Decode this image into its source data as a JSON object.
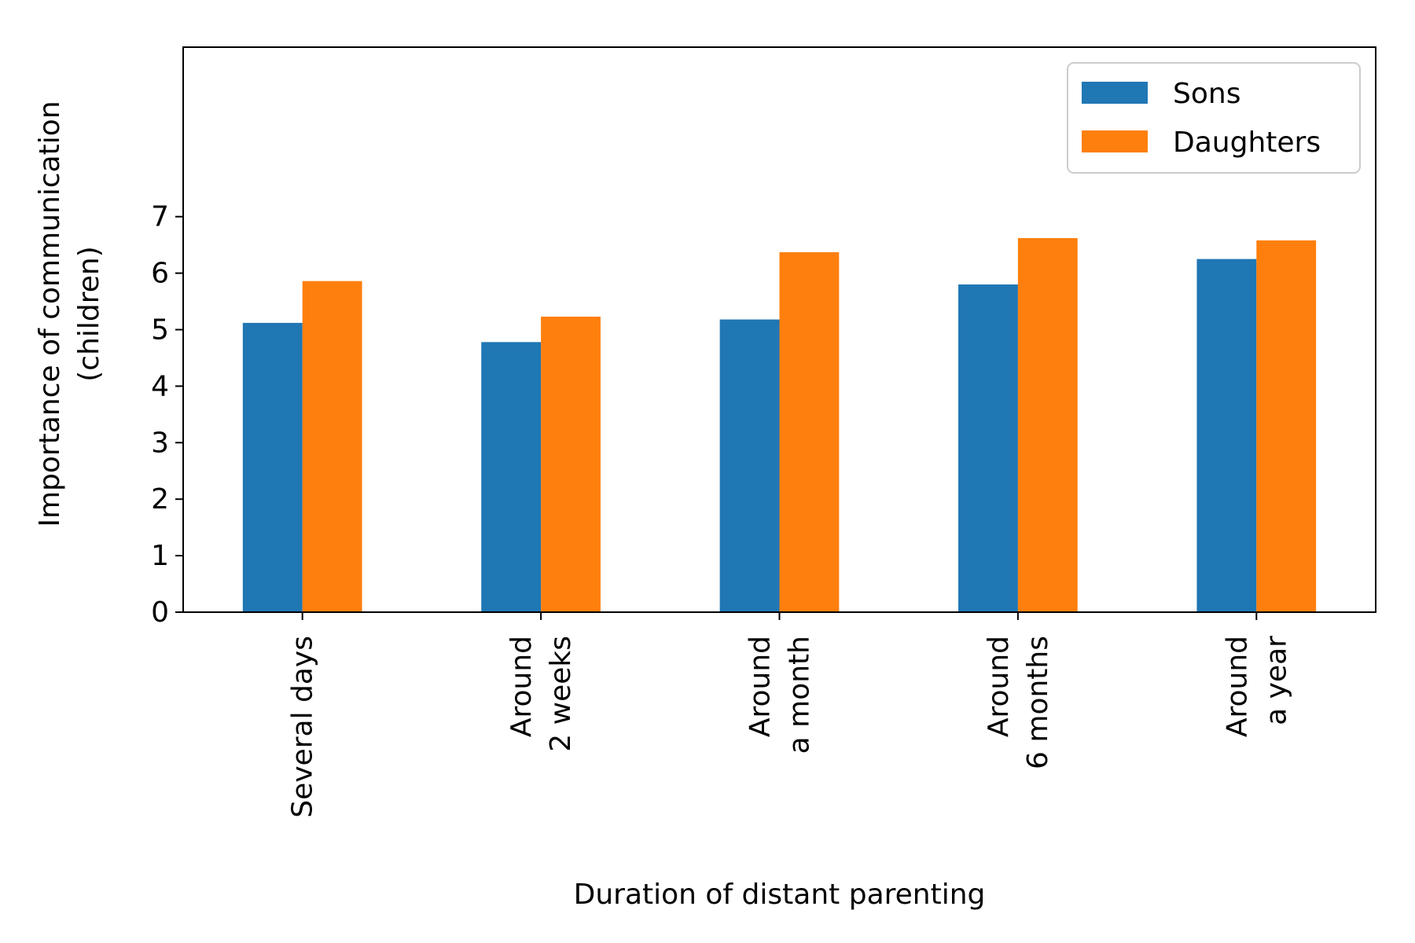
{
  "chart_data": {
    "type": "bar",
    "title": "",
    "xlabel": "Duration of distant parenting",
    "ylabel_lines": [
      "Importance of communication",
      "(children)"
    ],
    "categories": [
      [
        "Several days"
      ],
      [
        "Around",
        "2 weeks"
      ],
      [
        "Around",
        "a month"
      ],
      [
        "Around",
        "6 months"
      ],
      [
        "Around",
        "a year"
      ]
    ],
    "series": [
      {
        "name": "Sons",
        "color": "#1f77b4",
        "values": [
          5.12,
          4.78,
          5.18,
          5.8,
          6.25
        ]
      },
      {
        "name": "Daughters",
        "color": "#ff7f0e",
        "values": [
          5.86,
          5.23,
          6.37,
          6.62,
          6.58
        ]
      }
    ],
    "yticks": [
      0,
      1,
      2,
      3,
      4,
      5,
      6,
      7
    ],
    "ylim": [
      0,
      10
    ],
    "grid": false,
    "legend_position": "top-right"
  }
}
